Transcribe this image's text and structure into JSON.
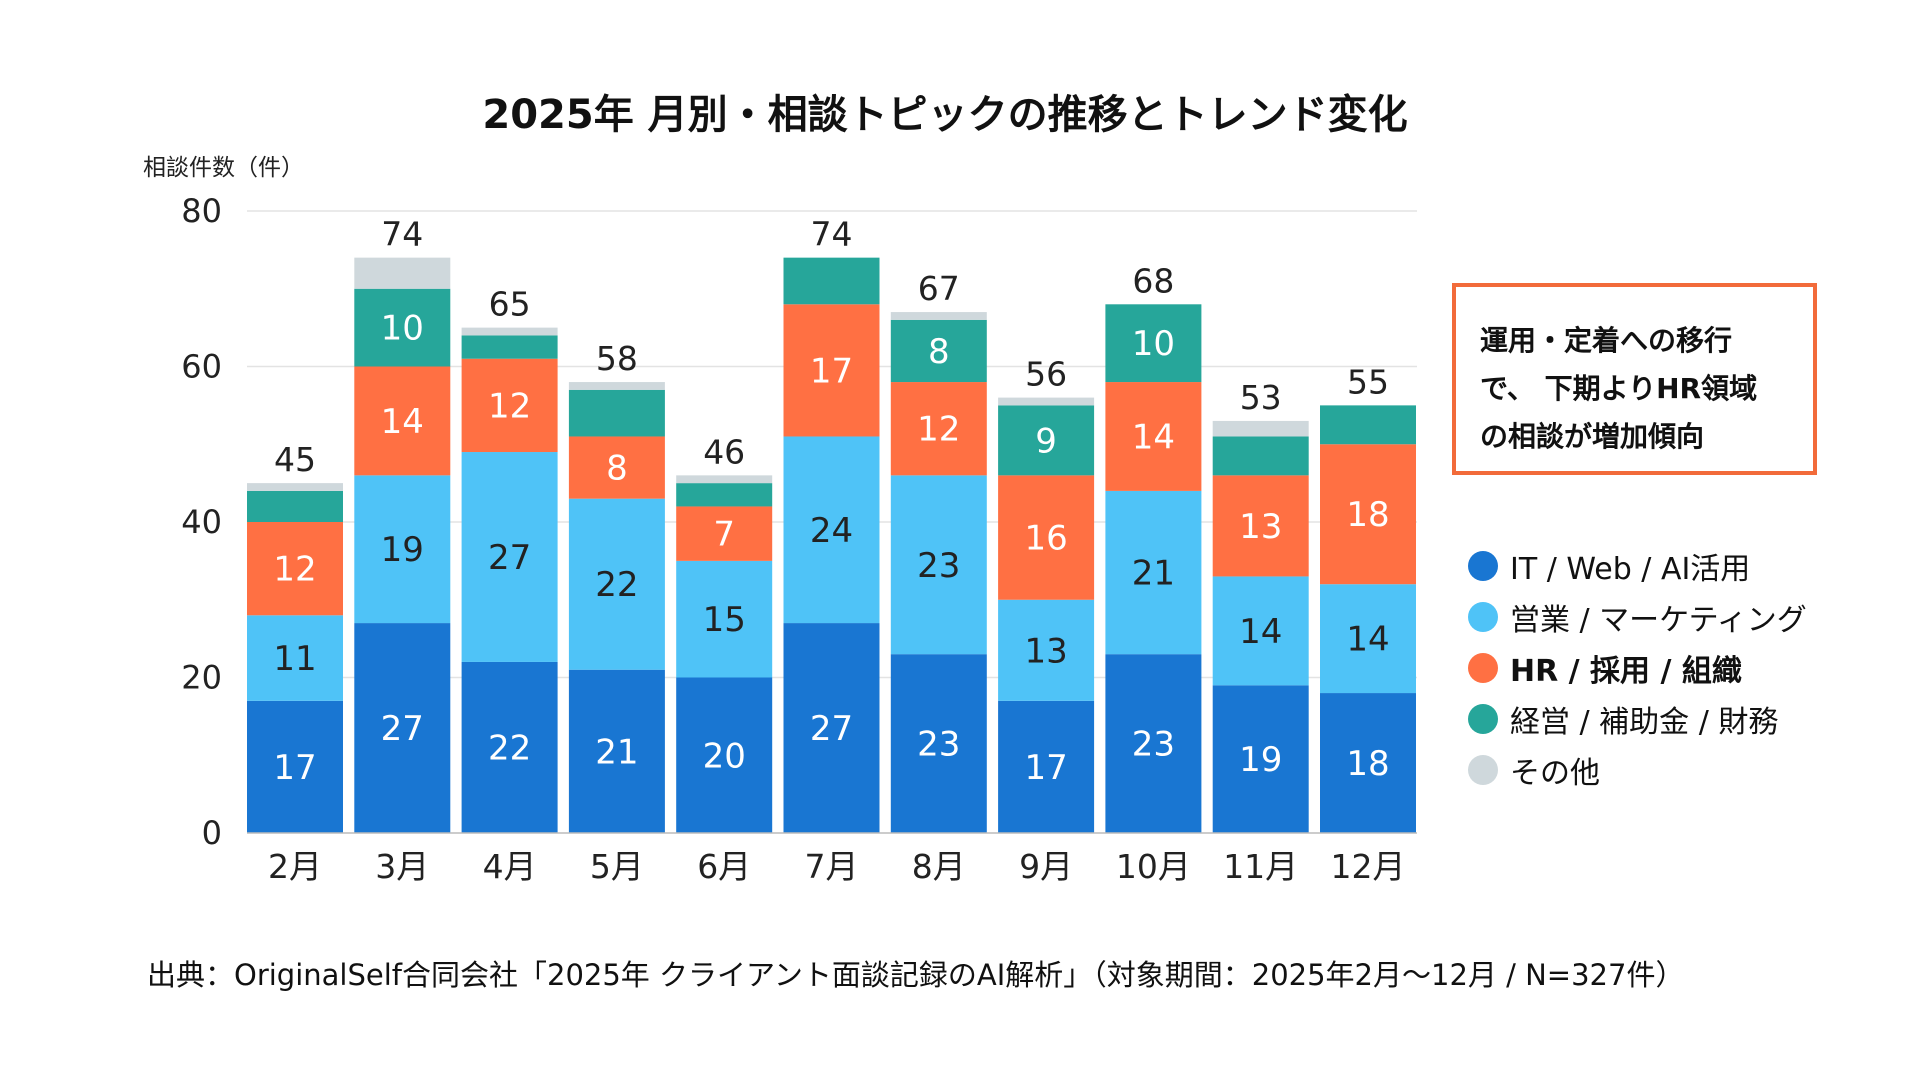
{
  "chart_data": {
    "type": "bar",
    "stacked": true,
    "title": "2025年 月別・相談トピックの推移とトレンド変化",
    "ylabel": "相談件数（件）",
    "ylim": [
      0,
      80
    ],
    "yticks": [
      0,
      20,
      40,
      60,
      80
    ],
    "grid": true,
    "legend_position": "right",
    "categories": [
      "2月",
      "3月",
      "4月",
      "5月",
      "6月",
      "7月",
      "8月",
      "9月",
      "10月",
      "11月",
      "12月"
    ],
    "series": [
      {
        "name": "IT / Web / AI活用",
        "color": "#1976d2",
        "values": [
          17,
          27,
          22,
          21,
          20,
          27,
          23,
          17,
          23,
          19,
          18
        ]
      },
      {
        "name": "営業 / マーケティング",
        "color": "#4fc3f7",
        "values": [
          11,
          19,
          27,
          22,
          15,
          24,
          23,
          13,
          21,
          14,
          14
        ]
      },
      {
        "name": "HR / 採用 / 組織",
        "color": "#ff7043",
        "values": [
          12,
          14,
          12,
          8,
          7,
          17,
          12,
          16,
          14,
          13,
          18
        ]
      },
      {
        "name": "経営 / 補助金 / 財務",
        "color": "#26a69a",
        "values": [
          4,
          10,
          3,
          6,
          3,
          6,
          8,
          9,
          10,
          5,
          5
        ]
      },
      {
        "name": "その他",
        "color": "#cfd8dc",
        "values": [
          1,
          4,
          1,
          1,
          1,
          0,
          1,
          1,
          0,
          2,
          0
        ]
      }
    ],
    "totals": [
      45,
      74,
      65,
      58,
      46,
      74,
      67,
      56,
      68,
      53,
      55
    ],
    "labeled_series": [
      true,
      true,
      true,
      false,
      false
    ],
    "labeled_mgmt_months": [
      "3月",
      "8月",
      "9月",
      "10月"
    ],
    "highlight_series": "HR / 採用 / 組織"
  },
  "annotation": "運用・定着への移行で、下期よりHR領域の相談が増加傾向",
  "annotation_lines": [
    "運用・定着への移行",
    "で、 下期よりHR領域",
    "の相談が増加傾向"
  ],
  "source": "出典：OriginalSelf合同会社「2025年 クライアント面談記録のAI解析」（対象期間：2025年2月〜12月 / N=327件）"
}
